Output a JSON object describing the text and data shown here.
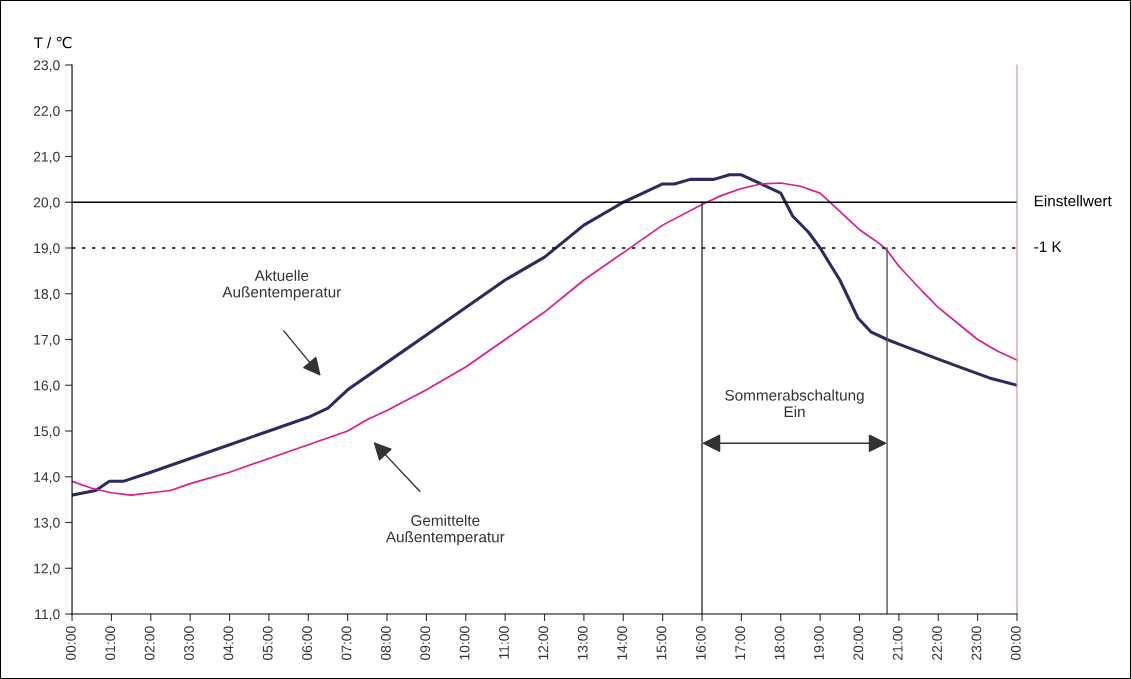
{
  "chart_data": {
    "type": "line",
    "ylabel": "T / ℃",
    "xlim": [
      0,
      24
    ],
    "ylim": [
      11,
      23
    ],
    "xticks": [
      {
        "value": 0,
        "label": "00:00"
      },
      {
        "value": 1,
        "label": "01:00"
      },
      {
        "value": 2,
        "label": "02:00"
      },
      {
        "value": 3,
        "label": "03:00"
      },
      {
        "value": 4,
        "label": "04:00"
      },
      {
        "value": 5,
        "label": "05:00"
      },
      {
        "value": 6,
        "label": "06:00"
      },
      {
        "value": 7,
        "label": "07:00"
      },
      {
        "value": 8,
        "label": "08:00"
      },
      {
        "value": 9,
        "label": "09:00"
      },
      {
        "value": 10,
        "label": "10:00"
      },
      {
        "value": 11,
        "label": "11:00"
      },
      {
        "value": 12,
        "label": "12:00"
      },
      {
        "value": 13,
        "label": "13:00"
      },
      {
        "value": 14,
        "label": "14:00"
      },
      {
        "value": 15,
        "label": "15:00"
      },
      {
        "value": 16,
        "label": "16:00"
      },
      {
        "value": 17,
        "label": "17:00"
      },
      {
        "value": 18,
        "label": "18:00"
      },
      {
        "value": 19,
        "label": "19:00"
      },
      {
        "value": 20,
        "label": "20:00"
      },
      {
        "value": 21,
        "label": "21:00"
      },
      {
        "value": 22,
        "label": "22:00"
      },
      {
        "value": 23,
        "label": "23:00"
      },
      {
        "value": 24,
        "label": "00:00"
      }
    ],
    "yticks": [
      {
        "value": 11,
        "label": "11,0"
      },
      {
        "value": 12,
        "label": "12,0"
      },
      {
        "value": 13,
        "label": "13,0"
      },
      {
        "value": 14,
        "label": "14,0"
      },
      {
        "value": 15,
        "label": "15,0"
      },
      {
        "value": 16,
        "label": "16,0"
      },
      {
        "value": 17,
        "label": "17,0"
      },
      {
        "value": 18,
        "label": "18,0"
      },
      {
        "value": 19,
        "label": "19,0"
      },
      {
        "value": 20,
        "label": "20,0"
      },
      {
        "value": 21,
        "label": "21,0"
      },
      {
        "value": 22,
        "label": "22,0"
      },
      {
        "value": 23,
        "label": "23,0"
      }
    ],
    "series": [
      {
        "color": "#2b2b5e",
        "x": [
          0,
          0.6,
          0.95,
          1.3,
          2,
          3,
          4,
          5,
          6,
          6.5,
          7,
          8,
          9,
          10,
          11,
          12,
          13,
          14,
          14.5,
          15,
          15.3,
          15.7,
          16.3,
          16.7,
          17,
          17.5,
          18,
          18.3,
          18.7,
          19,
          19.5,
          19.96,
          20.3,
          20.7,
          21,
          22,
          22.6,
          23.3,
          24
        ],
        "values": [
          13.6,
          13.7,
          13.9,
          13.9,
          14.1,
          14.4,
          14.7,
          15.0,
          15.3,
          15.5,
          15.9,
          16.5,
          17.1,
          17.7,
          18.3,
          18.8,
          19.5,
          20.0,
          20.2,
          20.4,
          20.4,
          20.5,
          20.5,
          20.6,
          20.6,
          20.4,
          20.2,
          19.7,
          19.35,
          19.0,
          18.3,
          17.47,
          17.16,
          17.0,
          16.9,
          16.57,
          16.38,
          16.16,
          16.0
        ]
      },
      {
        "color": "#e0198c",
        "x": [
          0,
          0.5,
          1,
          1.5,
          2,
          2.5,
          3,
          4,
          5,
          6,
          7,
          7.5,
          8,
          9,
          10,
          11,
          12,
          13,
          14,
          15,
          16,
          16.5,
          17,
          17.5,
          18,
          18.5,
          19,
          19.5,
          20,
          20.5,
          20.7,
          21,
          21.6,
          22,
          22.5,
          23,
          23.5,
          24
        ],
        "values": [
          13.9,
          13.75,
          13.65,
          13.6,
          13.65,
          13.7,
          13.85,
          14.1,
          14.4,
          14.7,
          15.0,
          15.25,
          15.45,
          15.9,
          16.4,
          17.0,
          17.6,
          18.3,
          18.9,
          19.5,
          19.95,
          20.15,
          20.3,
          20.4,
          20.42,
          20.35,
          20.2,
          19.8,
          19.4,
          19.1,
          18.95,
          18.6,
          18.05,
          17.7,
          17.35,
          17.0,
          16.75,
          16.55
        ]
      },
      {
        "color": "#333333",
        "x": [
          16,
          16
        ],
        "values": [
          11,
          20
        ]
      },
      {
        "color": "#555555",
        "x": [
          20.7,
          20.7
        ],
        "values": [
          11,
          19
        ]
      }
    ],
    "ref_lines": [
      {
        "axis": "y",
        "value": 20,
        "label": "Einstellwert",
        "color": "#000000",
        "line_style": "solid"
      },
      {
        "axis": "y",
        "value": 19,
        "label": "-1 K",
        "color": "#000000",
        "line_style": "dotted"
      }
    ],
    "annotations": [
      "Aktuelle\nAußentemperatur",
      "Gemittelte\nAußentemperatur",
      "Sommerabschaltung\nEin"
    ],
    "grid": false,
    "legend": false
  }
}
